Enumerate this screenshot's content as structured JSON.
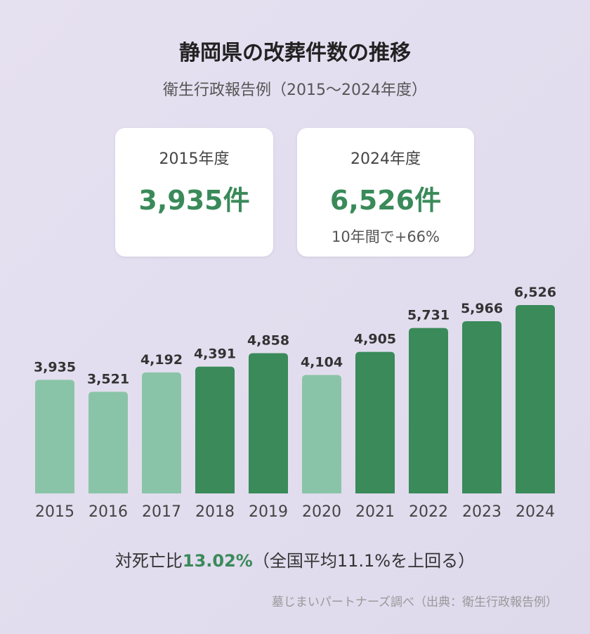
{
  "title": "静岡県の改葬件数の推移",
  "subtitle": "衛生行政報告例（2015〜2024年度）",
  "cards": [
    {
      "year": "2015年度",
      "count": "3,935件",
      "note": ""
    },
    {
      "year": "2024年度",
      "count": "6,526件",
      "note": "10年間で+66%"
    }
  ],
  "footnote": {
    "prefix": "対死亡比",
    "highlight": "13.02%",
    "suffix": "（全国平均11.1%を上回る）"
  },
  "source": "墓じまいパートナーズ調べ（出典：衛生行政報告例）",
  "colors": {
    "light_bar": "#8ac4a8",
    "dark_bar": "#3a8a5a",
    "accent": "#3a8a5a"
  },
  "chart_data": {
    "type": "bar",
    "categories": [
      "2015",
      "2016",
      "2017",
      "2018",
      "2019",
      "2020",
      "2021",
      "2022",
      "2023",
      "2024"
    ],
    "values": [
      3935,
      3521,
      4192,
      4391,
      4858,
      4104,
      4905,
      5731,
      5966,
      6526
    ],
    "value_labels": [
      "3,935",
      "3,521",
      "4,192",
      "4,391",
      "4,858",
      "4,104",
      "4,905",
      "5,731",
      "5,966",
      "6,526"
    ],
    "highlight": [
      false,
      false,
      false,
      true,
      true,
      false,
      true,
      true,
      true,
      true
    ],
    "ylim": [
      0,
      6526
    ],
    "grid": false,
    "legend": "none"
  }
}
